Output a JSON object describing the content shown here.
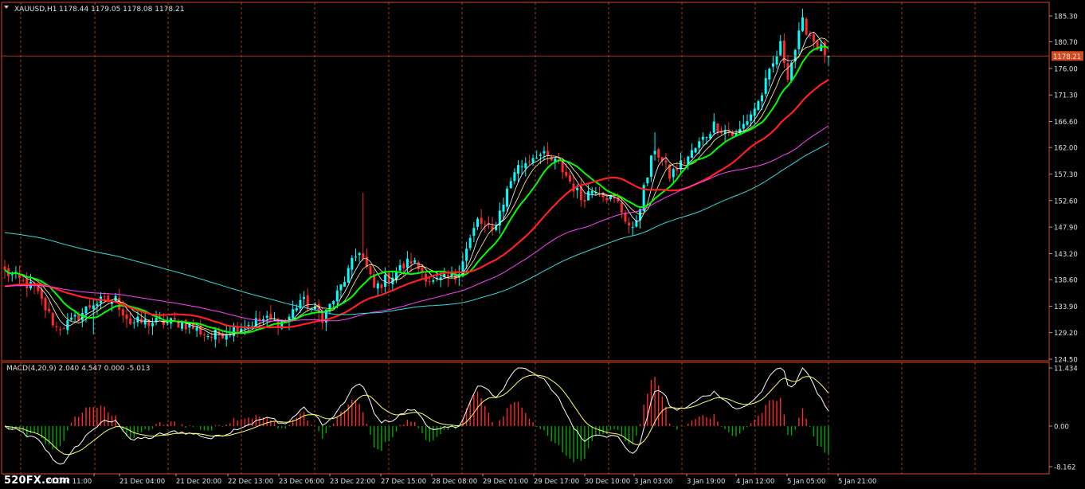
{
  "chart_data": [
    {
      "type": "candlestick",
      "title": "XAUUSD,H1",
      "header_values": "1178.44 1179.05 1178.08 1178.21",
      "ylim": [
        1124.5,
        1187.8
      ],
      "y_ticks": [
        "185.30",
        "180.70",
        "176.00",
        "171.30",
        "166.60",
        "162.00",
        "157.30",
        "152.60",
        "147.90",
        "143.20",
        "138.60",
        "133.90",
        "129.20",
        "124.50"
      ],
      "y_tick_values": [
        1185.3,
        1180.7,
        1176.0,
        1171.3,
        1166.6,
        1162.0,
        1157.3,
        1152.6,
        1147.9,
        1143.2,
        1138.6,
        1133.9,
        1129.2,
        1124.5
      ],
      "current_price": "1178.21",
      "bars": 224,
      "anchors": [
        [
          0,
          1140
        ],
        [
          8,
          1137
        ],
        [
          14,
          1130
        ],
        [
          18,
          1131
        ],
        [
          24,
          1134.5
        ],
        [
          30,
          1135
        ],
        [
          34,
          1131
        ],
        [
          40,
          1131
        ],
        [
          48,
          1131
        ],
        [
          56,
          1128.5
        ],
        [
          62,
          1130
        ],
        [
          70,
          1131.5
        ],
        [
          76,
          1131
        ],
        [
          80,
          1135
        ],
        [
          86,
          1132
        ],
        [
          90,
          1136
        ],
        [
          96,
          1144
        ],
        [
          100,
          1137
        ],
        [
          104,
          1139
        ],
        [
          110,
          1142
        ],
        [
          116,
          1138
        ],
        [
          122,
          1139
        ],
        [
          128,
          1149
        ],
        [
          132,
          1147
        ],
        [
          138,
          1158
        ],
        [
          144,
          1161
        ],
        [
          150,
          1159
        ],
        [
          156,
          1153
        ],
        [
          160,
          1155
        ],
        [
          166,
          1152
        ],
        [
          170,
          1147
        ],
        [
          176,
          1162
        ],
        [
          180,
          1157
        ],
        [
          186,
          1161
        ],
        [
          192,
          1166
        ],
        [
          198,
          1164
        ],
        [
          204,
          1170
        ],
        [
          210,
          1180
        ],
        [
          212,
          1175
        ],
        [
          216,
          1184
        ],
        [
          220,
          1180
        ],
        [
          223,
          1178.2
        ]
      ],
      "moving_averages": [
        {
          "period": 5,
          "color": "#ffffff",
          "width": 0.8
        },
        {
          "period": 8,
          "color": "#ffff99",
          "width": 0.8
        },
        {
          "period": 13,
          "color": "#00ff00",
          "width": 2
        },
        {
          "period": 30,
          "color": "#ff2020",
          "width": 2.2
        },
        {
          "period": 60,
          "color": "#ff44ff",
          "width": 1
        },
        {
          "period": 90,
          "color": "#33dddd",
          "width": 1,
          "start_value": 1147
        }
      ],
      "bull_color": "#00ffff",
      "bear_color": "#ff2a2a",
      "x_tick_labels": [
        "20 Dec 11:00",
        "21 Dec 04:00",
        "21 Dec 20:00",
        "22 Dec 13:00",
        "23 Dec 06:00",
        "23 Dec 22:00",
        "27 Dec 15:00",
        "28 Dec 08:00",
        "29 Dec 01:00",
        "29 Dec 17:00",
        "30 Dec 10:00",
        "3 Jan 03:00",
        "3 Jan 19:00",
        "4 Jan 12:00",
        "5 Jan 05:00",
        "5 Jan 21:00"
      ]
    },
    {
      "type": "bar",
      "title": "MACD(4,20,9) 2.040 4.547 0.000 -5.013",
      "ylim": [
        -8.162,
        11.434
      ],
      "y_ticks": [
        "11.434",
        "0.00",
        "-8.162"
      ],
      "y_tick_values": [
        11.434,
        0.0,
        -8.162
      ],
      "positive_color": "#ff2a2a",
      "negative_color": "#00aa00",
      "line_colors": [
        "#ffffff",
        "#ffff66"
      ]
    }
  ],
  "watermark": "520FX.com"
}
